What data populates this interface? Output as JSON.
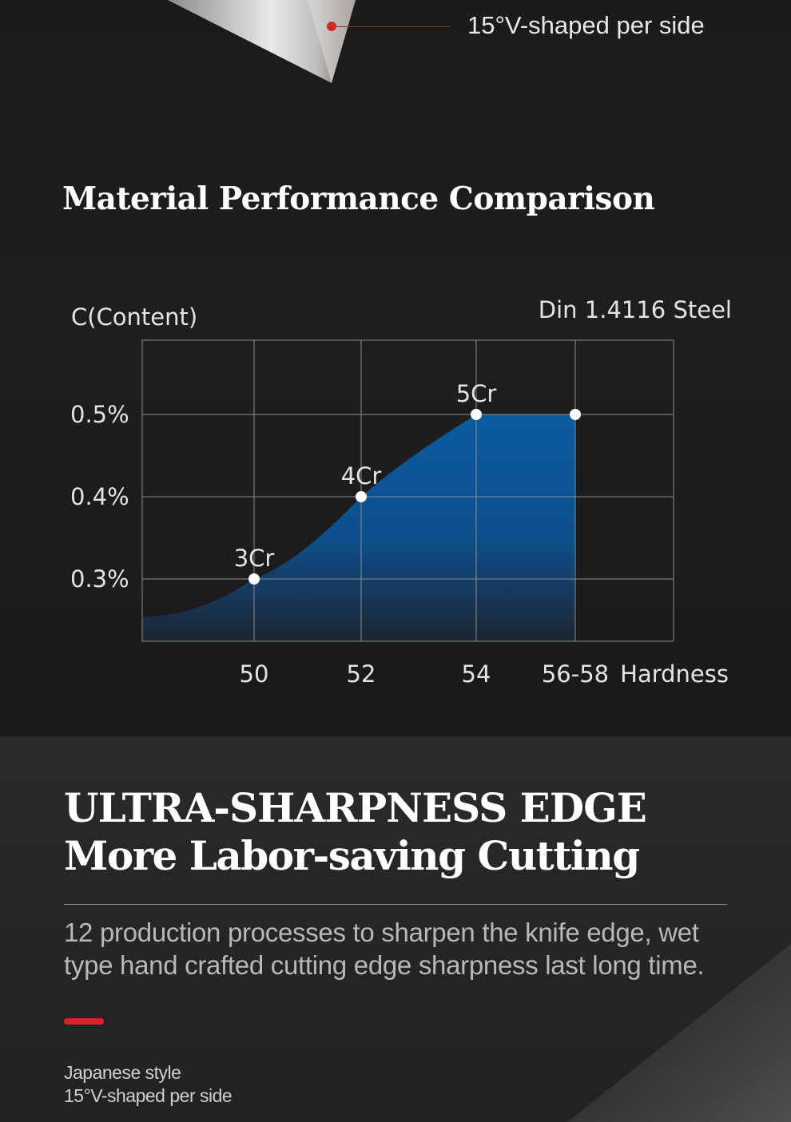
{
  "top": {
    "callout_label": "15°V-shaped per side",
    "section_title": "Material Performance Comparison"
  },
  "chart_data": {
    "type": "area",
    "y_axis_label": "C(Content)",
    "x_axis_label": "Hardness",
    "legend_label": "Din 1.4116 Steel",
    "categories": [
      "50",
      "52",
      "54",
      "56-58"
    ],
    "y_ticks": [
      "0.3%",
      "0.4%",
      "0.5%"
    ],
    "y_tick_values": [
      0.3,
      0.4,
      0.5
    ],
    "points": [
      {
        "x": "50",
        "y": 0.3,
        "label": "3Cr"
      },
      {
        "x": "52",
        "y": 0.4,
        "label": "4Cr"
      },
      {
        "x": "54",
        "y": 0.5,
        "label": "5Cr"
      },
      {
        "x": "56-58",
        "y": 0.5,
        "label": ""
      }
    ],
    "fill_color": "#0b5aa0",
    "grid": true
  },
  "bottom": {
    "headline_line1": "ULTRA-SHARPNESS EDGE",
    "headline_line2": "More Labor-saving Cutting",
    "description": "12 production processes to sharpen the knife edge, wet type hand crafted cutting edge sharpness last long time.",
    "footnote_line1": "Japanese style",
    "footnote_line2": "15°V-shaped per side",
    "accent_color": "#d8232a"
  }
}
